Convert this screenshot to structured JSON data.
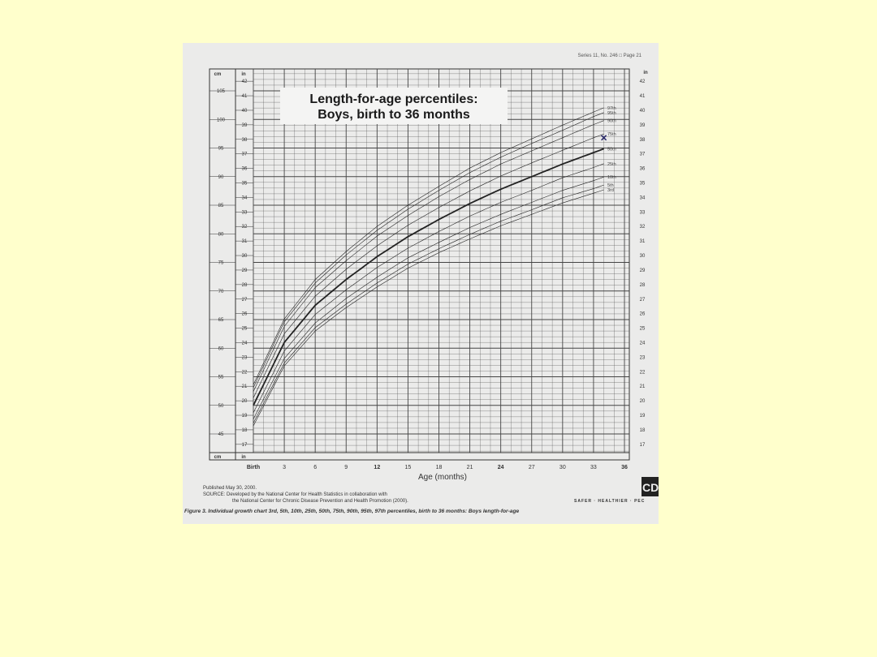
{
  "header": {
    "series_note": "Series 11, No. 246 □ Page 21"
  },
  "chart_data": {
    "type": "line",
    "title": "Length-for-age percentiles:",
    "subtitle": "Boys, birth to 36 months",
    "xlabel": "Age (months)",
    "ylabel_left_units": [
      "cm",
      "in"
    ],
    "ylabel_right_units": [
      "in"
    ],
    "x_tick_labels": [
      "Birth",
      "3",
      "6",
      "9",
      "12",
      "15",
      "18",
      "21",
      "24",
      "27",
      "30",
      "33",
      "36"
    ],
    "x": [
      0,
      3,
      6,
      9,
      12,
      15,
      18,
      21,
      24,
      27,
      30,
      33,
      36
    ],
    "xlim": [
      0,
      36
    ],
    "ylim_cm": [
      45,
      105
    ],
    "cm_ticks": [
      45,
      50,
      55,
      60,
      65,
      70,
      75,
      80,
      85,
      90,
      95,
      100,
      105
    ],
    "in_ticks": [
      17,
      18,
      19,
      20,
      21,
      22,
      23,
      24,
      25,
      26,
      27,
      28,
      29,
      30,
      31,
      32,
      33,
      34,
      35,
      36,
      37,
      38,
      39,
      40,
      41,
      42
    ],
    "grid": true,
    "series": [
      {
        "name": "97th",
        "values": [
          53.6,
          65.1,
          72.0,
          76.9,
          81.3,
          85.0,
          88.3,
          91.5,
          94.2,
          96.6,
          99.0,
          101.3,
          103.5
        ]
      },
      {
        "name": "95th",
        "values": [
          53.1,
          64.6,
          71.4,
          76.3,
          80.6,
          84.3,
          87.6,
          90.7,
          93.4,
          95.8,
          98.1,
          100.5,
          102.6
        ]
      },
      {
        "name": "90th",
        "values": [
          52.4,
          63.8,
          70.6,
          75.3,
          79.6,
          83.2,
          86.5,
          89.5,
          92.2,
          94.5,
          96.8,
          99.1,
          101.2
        ]
      },
      {
        "name": "75th",
        "values": [
          51.3,
          62.5,
          69.1,
          73.8,
          77.9,
          81.5,
          84.6,
          87.5,
          90.1,
          92.4,
          94.6,
          96.8,
          98.8
        ]
      },
      {
        "name": "50th",
        "values": [
          50.0,
          61.0,
          67.5,
          72.0,
          76.0,
          79.5,
          82.5,
          85.3,
          87.8,
          90.0,
          92.2,
          94.2,
          96.2
        ],
        "bold": true
      },
      {
        "name": "25th",
        "values": [
          48.7,
          59.5,
          65.9,
          70.2,
          74.1,
          77.5,
          80.4,
          83.1,
          85.5,
          87.6,
          89.8,
          91.6,
          93.6
        ]
      },
      {
        "name": "10th",
        "values": [
          47.6,
          58.2,
          64.4,
          68.7,
          72.4,
          75.8,
          78.5,
          81.1,
          83.4,
          85.5,
          87.6,
          89.3,
          91.2
        ]
      },
      {
        "name": "5th",
        "values": [
          46.9,
          57.4,
          63.6,
          67.7,
          71.4,
          74.7,
          77.4,
          79.9,
          82.2,
          84.2,
          86.3,
          87.9,
          89.8
        ]
      },
      {
        "name": "3rd",
        "values": [
          46.4,
          56.9,
          63.0,
          67.1,
          70.7,
          74.0,
          76.7,
          79.1,
          81.4,
          83.4,
          85.4,
          87.1,
          88.9
        ]
      }
    ],
    "marker": {
      "symbol": "x",
      "age_months": 34,
      "length_cm": 96.8,
      "color": "#2a2a6a"
    }
  },
  "footer": {
    "published": "Published May 30, 2000.",
    "source_line1": "SOURCE: Developed by the National Center for Health Statistics in collaboration with",
    "source_line2": "the National Center for Chronic Disease Prevention and Health Promotion (2000).",
    "logo_text": "CD",
    "tagline": "SAFER · HEALTHIER · PEC",
    "caption": "Figure 3. Individual growth chart 3rd, 5th, 10th, 25th, 50th, 75th, 90th, 95th, 97th percentiles, birth to 36 months: Boys length-for-age"
  },
  "colors": {
    "background": "#ffffcc",
    "paper": "#ebebea",
    "ink": "#222222"
  }
}
